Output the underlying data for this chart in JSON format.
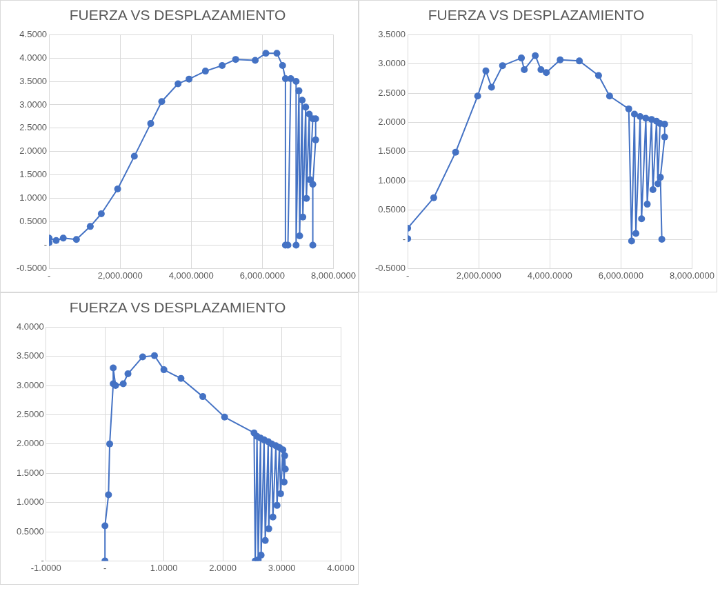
{
  "chart_data": [
    {
      "type": "line",
      "title": "FUERZA VS DESPLAZAMIENTO",
      "color": "#4472c4",
      "marker": "circle",
      "line_style": "solid",
      "grid": true,
      "x": [
        0,
        0,
        200,
        400,
        770,
        1160,
        1470,
        1930,
        2400,
        2860,
        3170,
        3630,
        3940,
        4400,
        4870,
        5250,
        5800,
        6100,
        6410,
        6570,
        6650,
        6650,
        6720,
        6800,
        6950,
        6950,
        7030,
        7050,
        7120,
        7140,
        7220,
        7240,
        7320,
        7340,
        7420,
        7500,
        7500,
        7420,
        7420
      ],
      "values": [
        0.05,
        0.15,
        0.1,
        0.15,
        0.12,
        0.4,
        0.67,
        1.2,
        1.9,
        2.6,
        3.07,
        3.45,
        3.55,
        3.72,
        3.84,
        3.97,
        3.95,
        4.1,
        4.1,
        3.84,
        3.56,
        0,
        0,
        3.56,
        3.5,
        0,
        3.3,
        0.2,
        3.1,
        0.6,
        2.95,
        1.0,
        2.8,
        1.4,
        2.7,
        2.7,
        2.25,
        1.3,
        0
      ],
      "xlim": [
        0,
        8000
      ],
      "ylim": [
        -0.5,
        4.5
      ],
      "xticks": [
        {
          "value": 0,
          "label": "-"
        },
        {
          "value": 2000,
          "label": "2,000.0000"
        },
        {
          "value": 4000,
          "label": "4,000.0000"
        },
        {
          "value": 6000,
          "label": "6,000.0000"
        },
        {
          "value": 8000,
          "label": "8,000.0000"
        }
      ],
      "yticks": [
        {
          "value": -0.5,
          "label": "-0.5000"
        },
        {
          "value": 0,
          "label": "-"
        },
        {
          "value": 0.5,
          "label": "0.5000"
        },
        {
          "value": 1,
          "label": "1.0000"
        },
        {
          "value": 1.5,
          "label": "1.5000"
        },
        {
          "value": 2,
          "label": "2.0000"
        },
        {
          "value": 2.5,
          "label": "2.5000"
        },
        {
          "value": 3,
          "label": "3.0000"
        },
        {
          "value": 3.5,
          "label": "3.5000"
        },
        {
          "value": 4,
          "label": "4.0000"
        },
        {
          "value": 4.5,
          "label": "4.5000"
        }
      ]
    },
    {
      "type": "line",
      "title": "FUERZA VS DESPLAZAMIENTO",
      "color": "#4472c4",
      "marker": "circle",
      "line_style": "solid",
      "grid": true,
      "x": [
        0,
        0,
        734,
        1350,
        1970,
        2200,
        2360,
        2670,
        3200,
        3280,
        3590,
        3750,
        3900,
        4290,
        4830,
        5370,
        5680,
        6220,
        6300,
        6380,
        6420,
        6540,
        6580,
        6700,
        6740,
        6860,
        6900,
        7000,
        7040,
        7100,
        7230,
        7230,
        7110,
        7150
      ],
      "values": [
        0.01,
        0.19,
        0.71,
        1.49,
        2.45,
        2.88,
        2.6,
        2.97,
        3.1,
        2.9,
        3.14,
        2.9,
        2.85,
        3.07,
        3.05,
        2.8,
        2.45,
        2.23,
        -0.03,
        2.14,
        0.1,
        2.1,
        0.35,
        2.07,
        0.6,
        2.05,
        0.85,
        2.02,
        0.95,
        1.98,
        1.97,
        1.75,
        1.06,
        0
      ],
      "xlim": [
        0,
        8000
      ],
      "ylim": [
        -0.5,
        3.5
      ],
      "xticks": [
        {
          "value": 0,
          "label": "-"
        },
        {
          "value": 2000,
          "label": "2,000.0000"
        },
        {
          "value": 4000,
          "label": "4,000.0000"
        },
        {
          "value": 6000,
          "label": "6,000.0000"
        },
        {
          "value": 8000,
          "label": "8,000.0000"
        }
      ],
      "yticks": [
        {
          "value": -0.5,
          "label": "-0.5000"
        },
        {
          "value": 0,
          "label": "-"
        },
        {
          "value": 0.5,
          "label": "0.5000"
        },
        {
          "value": 1,
          "label": "1.0000"
        },
        {
          "value": 1.5,
          "label": "1.5000"
        },
        {
          "value": 2,
          "label": "2.0000"
        },
        {
          "value": 2.5,
          "label": "2.5000"
        },
        {
          "value": 3,
          "label": "3.0000"
        },
        {
          "value": 3.5,
          "label": "3.5000"
        }
      ]
    },
    {
      "type": "line",
      "title": "FUERZA VS DESPLAZAMIENTO",
      "color": "#4472c4",
      "marker": "circle",
      "line_style": "solid",
      "grid": true,
      "x": [
        0,
        0,
        0.06,
        0.08,
        0.14,
        0.14,
        0.18,
        0.31,
        0.39,
        0.64,
        0.84,
        1.0,
        1.29,
        1.66,
        2.03,
        2.53,
        2.55,
        2.58,
        2.6,
        2.64,
        2.65,
        2.7,
        2.72,
        2.77,
        2.78,
        2.83,
        2.85,
        2.9,
        2.92,
        2.96,
        2.98,
        3.02,
        3.04,
        3.05,
        3.06
      ],
      "values": [
        0,
        0.6,
        1.13,
        2.0,
        3.03,
        3.3,
        3.0,
        3.03,
        3.2,
        3.49,
        3.51,
        3.27,
        3.12,
        2.81,
        2.46,
        2.19,
        0,
        2.13,
        0.02,
        2.1,
        0.1,
        2.07,
        0.35,
        2.04,
        0.55,
        2.0,
        0.75,
        1.97,
        0.95,
        1.94,
        1.15,
        1.9,
        1.35,
        1.8,
        1.57
      ],
      "xlim": [
        -1,
        4
      ],
      "ylim": [
        0,
        4
      ],
      "xticks": [
        {
          "value": -1,
          "label": "-1.0000"
        },
        {
          "value": 0,
          "label": "-"
        },
        {
          "value": 1,
          "label": "1.0000"
        },
        {
          "value": 2,
          "label": "2.0000"
        },
        {
          "value": 3,
          "label": "3.0000"
        },
        {
          "value": 4,
          "label": "4.0000"
        }
      ],
      "yticks": [
        {
          "value": 0,
          "label": "-"
        },
        {
          "value": 0.5,
          "label": "0.5000"
        },
        {
          "value": 1,
          "label": "1.0000"
        },
        {
          "value": 1.5,
          "label": "1.5000"
        },
        {
          "value": 2,
          "label": "2.0000"
        },
        {
          "value": 2.5,
          "label": "2.5000"
        },
        {
          "value": 3,
          "label": "3.0000"
        },
        {
          "value": 3.5,
          "label": "3.5000"
        },
        {
          "value": 4,
          "label": "4.0000"
        }
      ]
    }
  ]
}
